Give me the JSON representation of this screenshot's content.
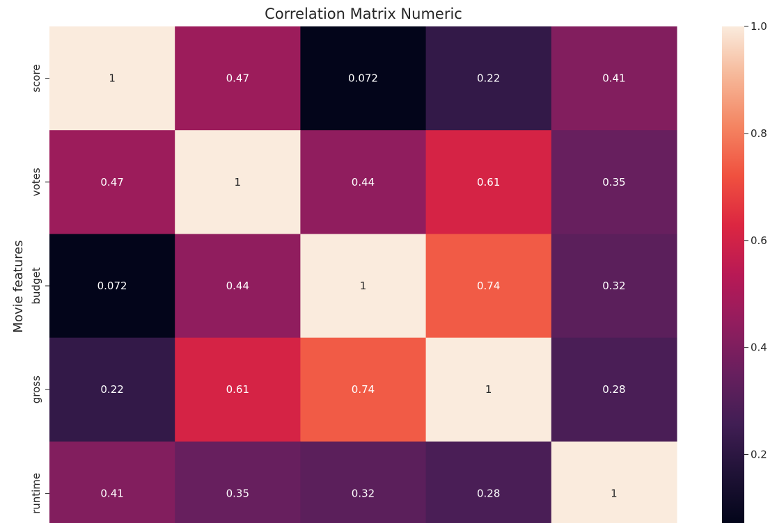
{
  "chart_data": {
    "type": "heatmap",
    "title": "Correlation Matrix Numeric",
    "ylabel": "Movie features",
    "xlabel": "",
    "row_labels": [
      "score",
      "votes",
      "budget",
      "gross",
      "runtime"
    ],
    "matrix": [
      [
        1,
        0.47,
        0.072,
        0.22,
        0.41
      ],
      [
        0.47,
        1,
        0.44,
        0.61,
        0.35
      ],
      [
        0.072,
        0.44,
        1,
        0.74,
        0.32
      ],
      [
        0.22,
        0.61,
        0.74,
        1,
        0.28
      ],
      [
        0.41,
        0.35,
        0.32,
        0.28,
        1
      ]
    ],
    "annotations": [
      [
        "1",
        "0.47",
        "0.072",
        "0.22",
        "0.41"
      ],
      [
        "0.47",
        "1",
        "0.44",
        "0.61",
        "0.35"
      ],
      [
        "0.072",
        "0.44",
        "1",
        "0.74",
        "0.32"
      ],
      [
        "0.22",
        "0.61",
        "0.74",
        "1",
        "0.28"
      ],
      [
        "0.41",
        "0.35",
        "0.32",
        "0.28",
        "1"
      ]
    ],
    "colormap": "rocket",
    "colorbar": {
      "vmin": 0.072,
      "vmax": 1.0,
      "ticks": [
        0.2,
        0.4,
        0.6,
        0.8,
        1.0
      ],
      "tick_labels": [
        "0.2",
        "0.4",
        "0.6",
        "0.8",
        "1.0"
      ]
    }
  }
}
